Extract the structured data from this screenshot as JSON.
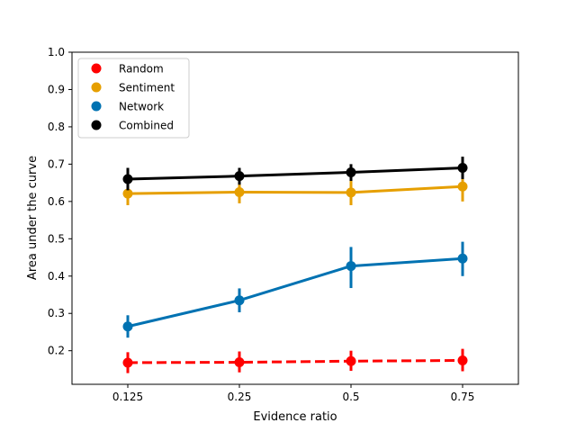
{
  "chart_data": {
    "type": "line",
    "xlabel": "Evidence ratio",
    "ylabel": "Area under the curve",
    "categories": [
      "0.125",
      "0.25",
      "0.5",
      "0.75"
    ],
    "ylim": [
      0.11,
      1.0
    ],
    "yticks": [
      0.2,
      0.3,
      0.4,
      0.5,
      0.6,
      0.7,
      0.8,
      0.9,
      1.0
    ],
    "ytick_labels": [
      "0.2",
      "0.3",
      "0.4",
      "0.5",
      "0.6",
      "0.7",
      "0.8",
      "0.9",
      "1.0"
    ],
    "grid": false,
    "legend_position": "top-left",
    "series": [
      {
        "name": "Random",
        "color": "#ff0000",
        "dashed": true,
        "values": [
          0.168,
          0.169,
          0.172,
          0.174
        ],
        "err_low": [
          0.14,
          0.142,
          0.146,
          0.145
        ],
        "err_high": [
          0.196,
          0.198,
          0.2,
          0.205
        ]
      },
      {
        "name": "Sentiment",
        "color": "#e69f00",
        "dashed": false,
        "values": [
          0.621,
          0.625,
          0.624,
          0.64
        ],
        "err_low": [
          0.59,
          0.595,
          0.59,
          0.6
        ],
        "err_high": [
          0.65,
          0.655,
          0.655,
          0.675
        ]
      },
      {
        "name": "Network",
        "color": "#0072b2",
        "dashed": false,
        "values": [
          0.265,
          0.335,
          0.427,
          0.447
        ],
        "err_low": [
          0.235,
          0.303,
          0.368,
          0.4
        ],
        "err_high": [
          0.295,
          0.367,
          0.478,
          0.492
        ]
      },
      {
        "name": "Combined",
        "color": "#000000",
        "dashed": false,
        "values": [
          0.66,
          0.668,
          0.678,
          0.69
        ],
        "err_low": [
          0.63,
          0.645,
          0.655,
          0.66
        ],
        "err_high": [
          0.69,
          0.69,
          0.7,
          0.72
        ]
      }
    ]
  }
}
